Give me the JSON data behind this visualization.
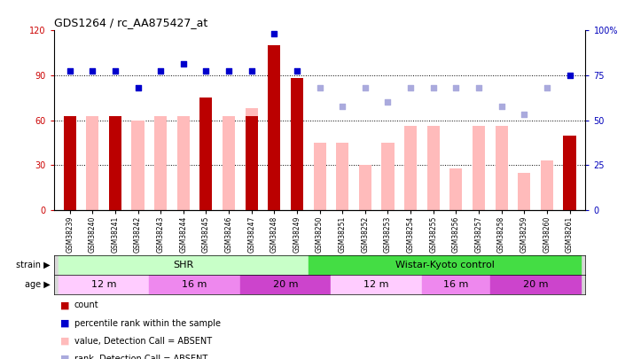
{
  "title": "GDS1264 / rc_AA875427_at",
  "samples": [
    "GSM38239",
    "GSM38240",
    "GSM38241",
    "GSM38242",
    "GSM38243",
    "GSM38244",
    "GSM38245",
    "GSM38246",
    "GSM38247",
    "GSM38248",
    "GSM38249",
    "GSM38250",
    "GSM38251",
    "GSM38252",
    "GSM38253",
    "GSM38254",
    "GSM38255",
    "GSM38256",
    "GSM38257",
    "GSM38258",
    "GSM38259",
    "GSM38260",
    "GSM38261"
  ],
  "count_values": [
    63,
    0,
    63,
    0,
    0,
    0,
    75,
    0,
    63,
    110,
    88,
    0,
    0,
    0,
    0,
    0,
    0,
    0,
    0,
    0,
    0,
    0,
    50
  ],
  "count_absent": [
    false,
    true,
    false,
    true,
    true,
    true,
    false,
    true,
    false,
    false,
    false,
    true,
    true,
    true,
    true,
    true,
    true,
    true,
    true,
    true,
    true,
    true,
    false
  ],
  "value_absent": [
    63,
    63,
    63,
    60,
    63,
    63,
    63,
    63,
    68,
    110,
    70,
    45,
    45,
    30,
    45,
    56,
    56,
    28,
    56,
    56,
    25,
    33,
    50
  ],
  "percentile_rank": [
    93,
    93,
    93,
    82,
    93,
    98,
    93,
    93,
    93,
    118,
    93,
    82,
    69,
    82,
    72,
    82,
    82,
    82,
    82,
    69,
    64,
    82,
    90
  ],
  "percentile_rank_absent": [
    false,
    false,
    false,
    false,
    false,
    false,
    false,
    false,
    false,
    false,
    false,
    true,
    true,
    true,
    true,
    true,
    true,
    true,
    true,
    true,
    true,
    true,
    false
  ],
  "ylim": [
    0,
    120
  ],
  "yticks_left": [
    0,
    30,
    60,
    90,
    120
  ],
  "ytick_labels_left": [
    "0",
    "30",
    "60",
    "90",
    "120"
  ],
  "yticks_right": [
    0,
    25,
    50,
    75,
    100
  ],
  "ytick_labels_right": [
    "0",
    "25",
    "50",
    "75",
    "100%"
  ],
  "strain_labels": [
    "SHR",
    "Wistar-Kyoto control"
  ],
  "strain_colors": [
    "#c8ffc8",
    "#44dd44"
  ],
  "strain_ranges": [
    [
      0,
      11
    ],
    [
      11,
      23
    ]
  ],
  "age_groups": [
    {
      "label": "12 m",
      "color": "#ffccff",
      "range": [
        0,
        4
      ]
    },
    {
      "label": "16 m",
      "color": "#ee88ee",
      "range": [
        4,
        8
      ]
    },
    {
      "label": "20 m",
      "color": "#cc44cc",
      "range": [
        8,
        12
      ]
    },
    {
      "label": "12 m",
      "color": "#ffccff",
      "range": [
        12,
        16
      ]
    },
    {
      "label": "16 m",
      "color": "#ee88ee",
      "range": [
        16,
        19
      ]
    },
    {
      "label": "20 m",
      "color": "#cc44cc",
      "range": [
        19,
        23
      ]
    }
  ],
  "color_count": "#bb0000",
  "color_count_absent": "#ffbbbb",
  "color_percentile": "#0000cc",
  "color_rank_absent": "#aaaadd",
  "bar_width": 0.55,
  "dot_size": 22,
  "left_color": "#cc0000",
  "right_color": "#0000bb"
}
